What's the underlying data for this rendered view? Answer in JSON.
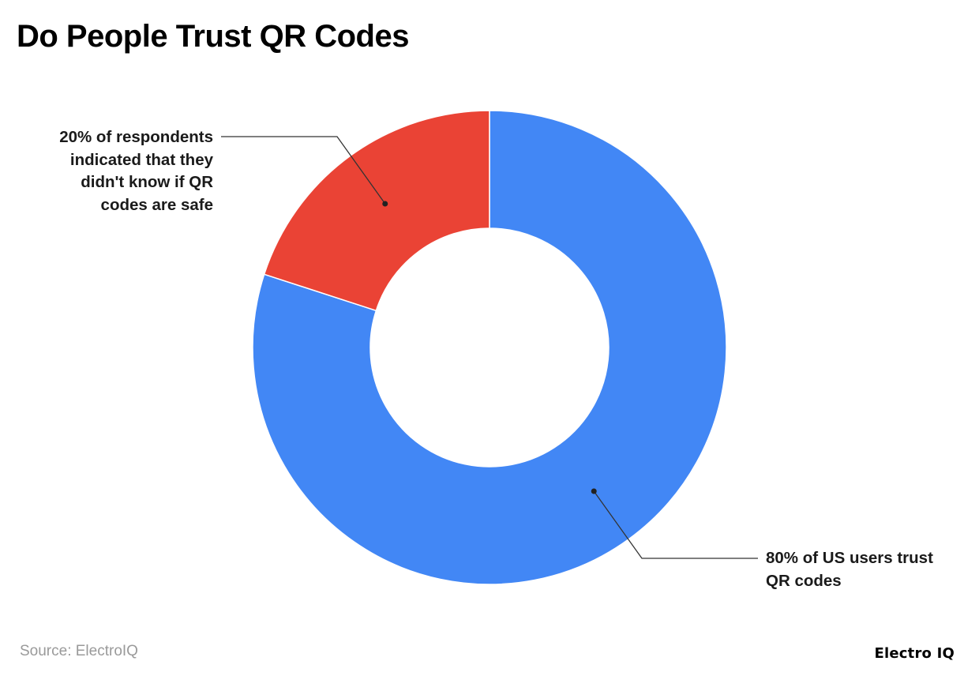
{
  "title": "Do People Trust QR Codes",
  "chart_data": {
    "type": "pie",
    "donut": true,
    "start_angle_deg": 0,
    "direction": "clockwise",
    "slices": [
      {
        "value": 80,
        "color": "#4287F5",
        "label_lines": [
          "80% of US users trust",
          "QR codes"
        ]
      },
      {
        "value": 20,
        "color": "#EA4335",
        "label_lines": [
          "20% of respondents",
          "indicated that they",
          "didn't know if QR",
          "codes are safe"
        ]
      }
    ],
    "legend": "none"
  },
  "footer": {
    "source": "Source: ElectroIQ",
    "brand": "Electro IQ"
  },
  "colors": {
    "blue": "#4287F5",
    "red": "#EA4335",
    "leader": "#333333"
  }
}
